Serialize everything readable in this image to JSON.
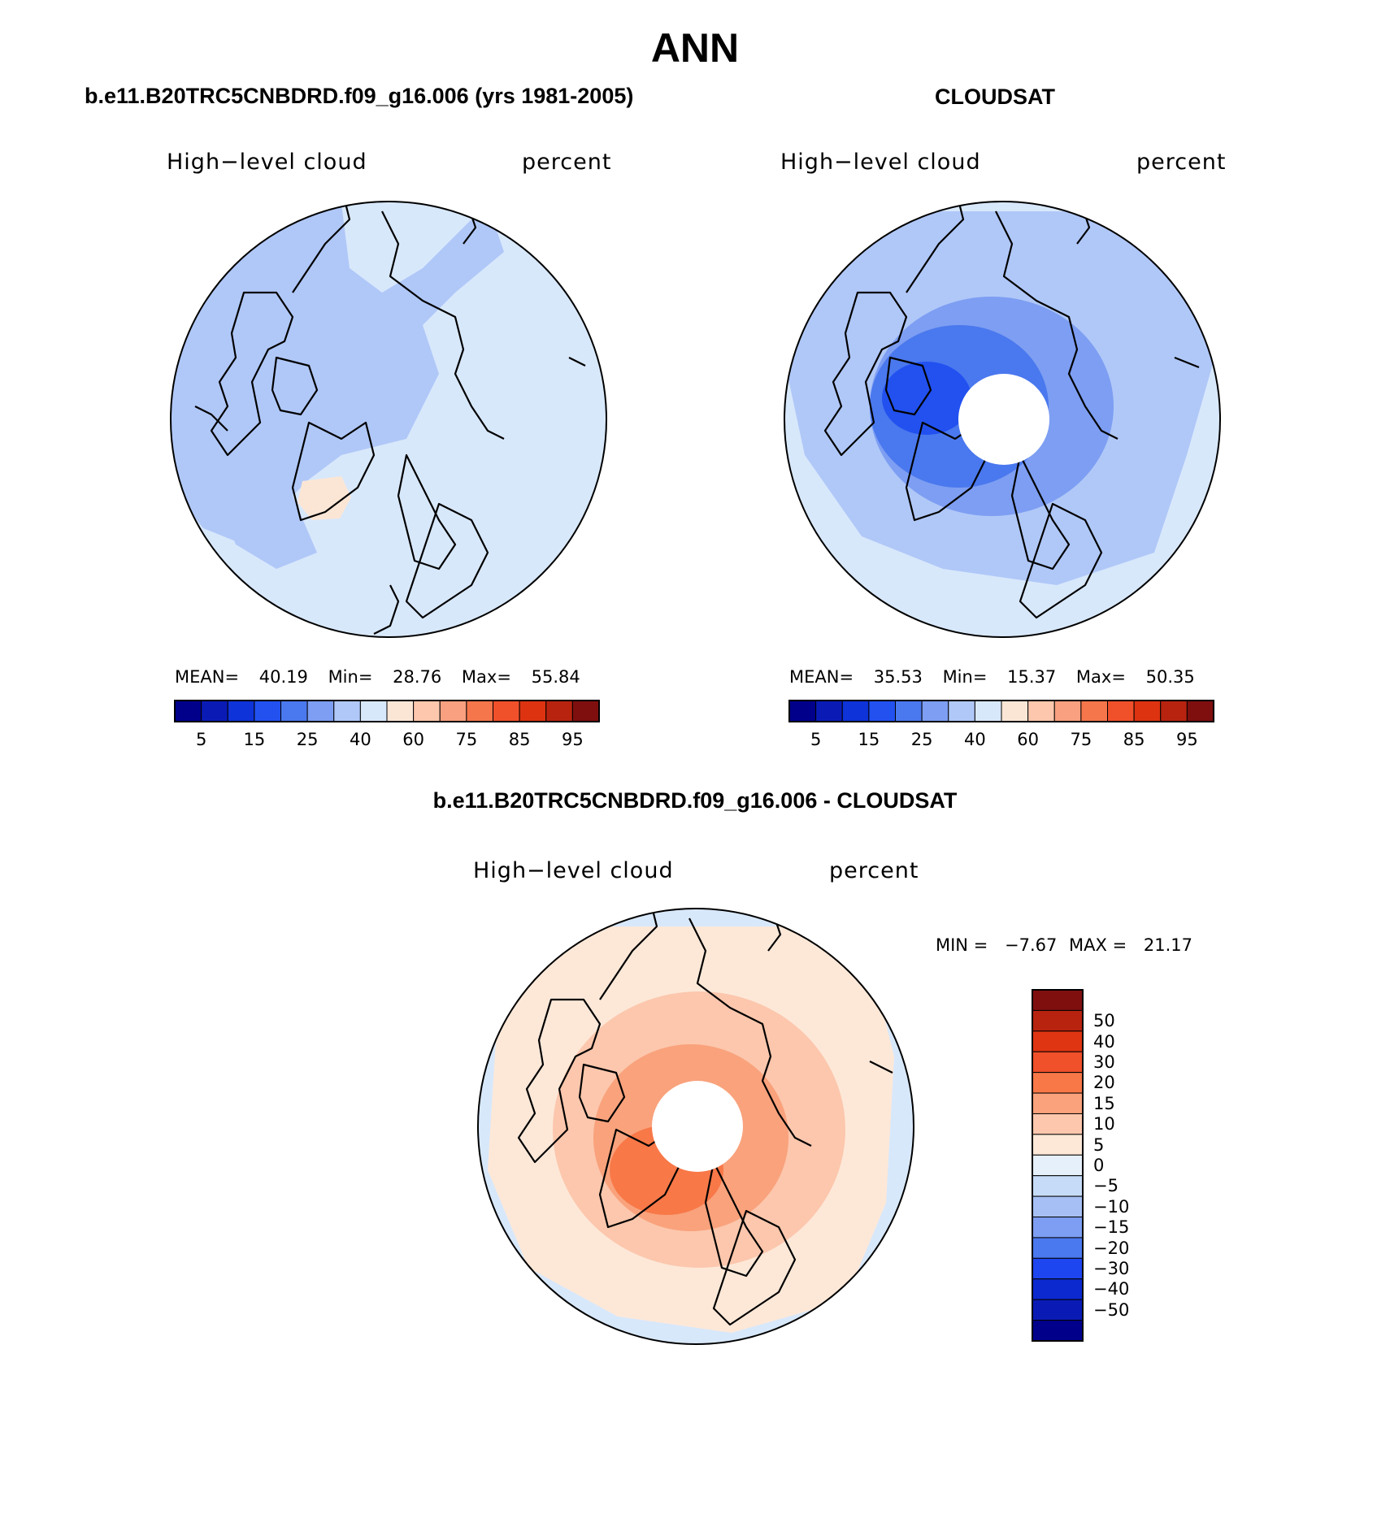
{
  "title": "ANN",
  "panels": {
    "model": {
      "title": "b.e11.B20TRC5CNBDRD.f09_g16.006 (yrs 1981-2005)",
      "variable": "High−level cloud",
      "units": "percent",
      "stats": {
        "mean_label": "MEAN=",
        "mean": "40.19",
        "min_label": "Min=",
        "min": "28.76",
        "max_label": "Max=",
        "max": "55.84"
      }
    },
    "obs": {
      "title": "CLOUDSAT",
      "variable": "High−level cloud",
      "units": "percent",
      "stats": {
        "mean_label": "MEAN=",
        "mean": "35.53",
        "min_label": "Min=",
        "min": "15.37",
        "max_label": "Max=",
        "max": "50.35"
      }
    },
    "diff": {
      "title": "b.e11.B20TRC5CNBDRD.f09_g16.006 - CLOUDSAT",
      "variable": "High−level cloud",
      "units": "percent",
      "stats": {
        "min_label": "MIN =",
        "min": "−7.67",
        "max_label": "MAX =",
        "max": "21.17"
      }
    }
  },
  "colorbar_abs": {
    "colors": [
      "#00008b",
      "#0a1bb5",
      "#0d33d9",
      "#2251f0",
      "#4a78ee",
      "#7d9ef2",
      "#b0c8f8",
      "#d8e8fb",
      "#fbe6d6",
      "#fcc7ad",
      "#f8a07f",
      "#f5764b",
      "#f0502a",
      "#dd3311",
      "#b7230f",
      "#7f0f0f"
    ],
    "tick_labels": [
      "5",
      "15",
      "25",
      "40",
      "60",
      "75",
      "85",
      "95"
    ]
  },
  "colorbar_diff": {
    "colors_top_to_bottom": [
      "#7f0f0f",
      "#b7230f",
      "#e03512",
      "#f0502a",
      "#f87848",
      "#f9a27c",
      "#fcc7ad",
      "#fde8d8",
      "#e6f0fb",
      "#c6dbf7",
      "#a6c0f5",
      "#7d9ef2",
      "#4a78ee",
      "#1d45f0",
      "#0b29cf",
      "#0a1bb5",
      "#00008b"
    ],
    "tick_labels_top_to_bottom": [
      "50",
      "40",
      "30",
      "20",
      "15",
      "10",
      "5",
      "0",
      "−5",
      "−10",
      "−15",
      "−20",
      "−30",
      "−40",
      "−50"
    ]
  },
  "map_colors": {
    "model_base": "#d8e8fb",
    "model_mid": "#b0c8f8",
    "model_warm": "#fbe6d6",
    "obs_base": "#b0c8f8",
    "obs_mid": "#7d9ef2",
    "obs_core": "#4a78ee",
    "obs_deep": "#2251f0",
    "obs_outer": "#d8e8fb",
    "diff_base": "#fde8d8",
    "diff_cool": "#d8e8fb",
    "diff_mid": "#fcc7ad",
    "diff_warm": "#f9a27c",
    "diff_hot": "#f87848"
  }
}
